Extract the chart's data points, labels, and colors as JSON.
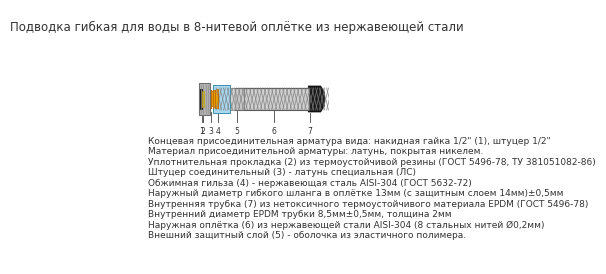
{
  "title": "Подводка гибкая для воды в 8-нитевой оплётке из нержавеющей стали",
  "bg_color": "#ffffff",
  "title_fontsize": 8.5,
  "body_fontsize": 6.5,
  "body_lines": [
    "Концевая присоединительная арматура вида: накидная гайка 1/2\" (1), штуцер 1/2\"",
    "Материал присоединительной арматуры: латунь, покрытая никелем.",
    "Уплотнительная прокладка (2) из термоустойчивой резины (ГОСТ 5496-78, ТУ 381051082-86)",
    "Штуцер соединительный (3) - латунь специальная (ЛС)",
    "Обжимная гильза (4) - нержавеющая сталь AISI-304 (ГОСТ 5632-72)",
    "Наружный диаметр гибкого шланга в оплётке 13мм (с защитным слоем 14мм)±0,5мм",
    "Внутренняя трубка (7) из нетоксичного термоустойчивого материала EPDM (ГОСТ 5496-78)",
    "Внутренний диаметр EPDM трубки 8,5мм±0,5мм, толщина 2мм",
    "Наружная оплётка (6) из нержавеющей стали AISI-304 (8 стальных нитей Ø0,2мм)",
    "Внешний защитный слой (5) - оболочка из эластичного полимера."
  ],
  "colors": {
    "gray_nut": "#b0b0b0",
    "yellow_gasket": "#f5c800",
    "yellow_connector": "#e8a000",
    "light_blue": "#a8d8f0",
    "dark_braid": "#606060",
    "black_tip": "#1a1a1a",
    "white_inner": "#e8e8e8",
    "border": "#404040",
    "line_color": "#404040"
  }
}
